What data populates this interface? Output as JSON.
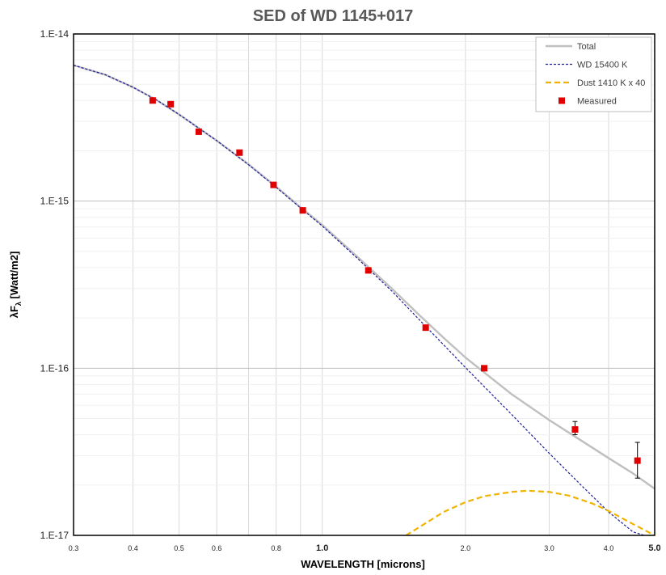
{
  "chart_data": {
    "type": "line",
    "title": "SED of WD 1145+017",
    "xlabel": "WAVELENGTH [microns]",
    "ylabel": "λF",
    "ylabel_sub": "λ",
    "ylabel_unit": " [Watt/m2]",
    "x_scale": "log",
    "y_scale": "log",
    "xlim": [
      0.3,
      5.0
    ],
    "ylim": [
      1e-17,
      1e-14
    ],
    "grid": true,
    "legend_position": "top-right",
    "x_ticks": [
      {
        "value": 0.3,
        "label": "0.3",
        "major": false
      },
      {
        "value": 0.4,
        "label": "0.4",
        "major": false
      },
      {
        "value": 0.5,
        "label": "0.5",
        "major": false
      },
      {
        "value": 0.6,
        "label": "0.6",
        "major": false
      },
      {
        "value": 0.8,
        "label": "0.8",
        "major": false
      },
      {
        "value": 1.0,
        "label": "1.0",
        "major": true
      },
      {
        "value": 2.0,
        "label": "2.0",
        "major": false
      },
      {
        "value": 3.0,
        "label": "3.0",
        "major": false
      },
      {
        "value": 4.0,
        "label": "4.0",
        "major": false
      },
      {
        "value": 5.0,
        "label": "5.0",
        "major": true
      }
    ],
    "x_minor_grid": [
      0.7,
      0.9
    ],
    "y_ticks": [
      {
        "value": 1e-14,
        "label": "1.E-14"
      },
      {
        "value": 1e-15,
        "label": "1.E-15"
      },
      {
        "value": 1e-16,
        "label": "1.E-16"
      },
      {
        "value": 1e-17,
        "label": "1.E-17"
      }
    ],
    "series": [
      {
        "name": "Total",
        "style": "line",
        "color": "#bfbfbf",
        "x": [
          0.3,
          0.35,
          0.4,
          0.45,
          0.5,
          0.6,
          0.7,
          0.8,
          0.9,
          1.0,
          1.2,
          1.4,
          1.6,
          1.8,
          2.0,
          2.5,
          3.0,
          3.5,
          4.0,
          4.5,
          5.0
        ],
        "y": [
          6.5e-15,
          5.7e-15,
          4.8e-15,
          4e-15,
          3.3e-15,
          2.3e-15,
          1.66e-15,
          1.22e-15,
          9.2e-16,
          7.2e-16,
          4.5e-16,
          3e-16,
          2.08e-16,
          1.52e-16,
          1.16e-16,
          7e-17,
          4.9e-17,
          3.7e-17,
          2.9e-17,
          2.35e-17,
          1.9e-17
        ]
      },
      {
        "name": "WD 15400 K",
        "style": "dotted",
        "color": "#1f1f99",
        "x": [
          0.3,
          0.35,
          0.4,
          0.45,
          0.5,
          0.6,
          0.7,
          0.8,
          0.9,
          1.0,
          1.2,
          1.4,
          1.6,
          1.8,
          2.0,
          2.5,
          3.0,
          3.5,
          4.0,
          4.5,
          4.75
        ],
        "y": [
          6.5e-15,
          5.7e-15,
          4.8e-15,
          4e-15,
          3.3e-15,
          2.3e-15,
          1.65e-15,
          1.21e-15,
          9.1e-16,
          7.1e-16,
          4.4e-16,
          2.9e-16,
          1.95e-16,
          1.38e-16,
          1.01e-16,
          5.3e-17,
          3.1e-17,
          2e-17,
          1.38e-17,
          1.05e-17,
          1e-17
        ]
      },
      {
        "name": "Dust 1410 K x 40",
        "style": "dashed",
        "color": "#f0b400",
        "x": [
          1.5,
          1.6,
          1.8,
          2.0,
          2.2,
          2.5,
          2.7,
          3.0,
          3.3,
          3.7,
          4.0,
          4.5,
          5.0
        ],
        "y": [
          1e-17,
          1.12e-17,
          1.38e-17,
          1.58e-17,
          1.72e-17,
          1.82e-17,
          1.85e-17,
          1.82e-17,
          1.73e-17,
          1.55e-17,
          1.4e-17,
          1.17e-17,
          1e-17
        ]
      },
      {
        "name": "Measured",
        "style": "markers",
        "color": "#e00000",
        "x": [
          0.44,
          0.48,
          0.55,
          0.67,
          0.79,
          0.91,
          1.25,
          1.65,
          2.19,
          3.4,
          4.6
        ],
        "y": [
          4e-15,
          3.8e-15,
          2.6e-15,
          1.95e-15,
          1.25e-15,
          8.8e-16,
          3.85e-16,
          1.75e-16,
          1e-16,
          4.3e-17,
          2.8e-17
        ],
        "yerr_low": [
          null,
          null,
          null,
          null,
          null,
          null,
          null,
          null,
          null,
          4e-17,
          2.2e-17
        ],
        "yerr_high": [
          null,
          null,
          null,
          null,
          null,
          null,
          null,
          null,
          null,
          4.8e-17,
          3.6e-17
        ]
      }
    ]
  }
}
